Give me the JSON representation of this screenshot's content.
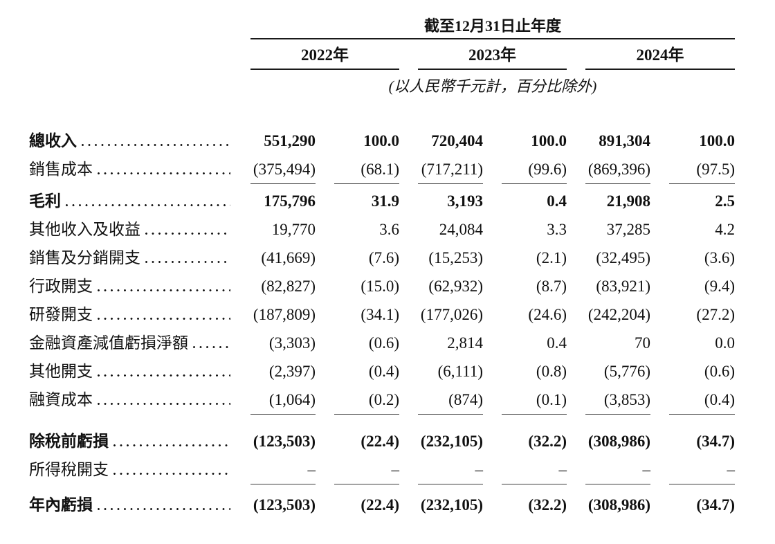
{
  "table": {
    "period_header": "截至12月31日止年度",
    "unit_note": "(以人民幣千元計，百分比除外)",
    "years": [
      "2022年",
      "2023年",
      "2024年"
    ],
    "column_kinds": [
      "amount",
      "percent",
      "amount",
      "percent",
      "amount",
      "percent"
    ],
    "rows": [
      {
        "label": "總收入",
        "bold": true,
        "ruled": false,
        "values": [
          "551,290",
          "100.0",
          "720,404",
          "100.0",
          "891,304",
          "100.0"
        ]
      },
      {
        "label": "銷售成本",
        "bold": false,
        "ruled": true,
        "values": [
          "(375,494)",
          "(68.1)",
          "(717,211)",
          "(99.6)",
          "(869,396)",
          "(97.5)"
        ]
      },
      {
        "label": "毛利",
        "bold": true,
        "ruled": false,
        "values": [
          "175,796",
          "31.9",
          "3,193",
          "0.4",
          "21,908",
          "2.5"
        ]
      },
      {
        "label": "其他收入及收益",
        "bold": false,
        "ruled": false,
        "values": [
          "19,770",
          "3.6",
          "24,084",
          "3.3",
          "37,285",
          "4.2"
        ]
      },
      {
        "label": "銷售及分銷開支",
        "bold": false,
        "ruled": false,
        "values": [
          "(41,669)",
          "(7.6)",
          "(15,253)",
          "(2.1)",
          "(32,495)",
          "(3.6)"
        ]
      },
      {
        "label": "行政開支",
        "bold": false,
        "ruled": false,
        "values": [
          "(82,827)",
          "(15.0)",
          "(62,932)",
          "(8.7)",
          "(83,921)",
          "(9.4)"
        ]
      },
      {
        "label": "研發開支",
        "bold": false,
        "ruled": false,
        "values": [
          "(187,809)",
          "(34.1)",
          "(177,026)",
          "(24.6)",
          "(242,204)",
          "(27.2)"
        ]
      },
      {
        "label": "金融資產減值虧損淨額",
        "bold": false,
        "ruled": false,
        "values": [
          "(3,303)",
          "(0.6)",
          "2,814",
          "0.4",
          "70",
          "0.0"
        ]
      },
      {
        "label": "其他開支",
        "bold": false,
        "ruled": false,
        "values": [
          "(2,397)",
          "(0.4)",
          "(6,111)",
          "(0.8)",
          "(5,776)",
          "(0.6)"
        ]
      },
      {
        "label": "融資成本",
        "bold": false,
        "ruled": true,
        "values": [
          "(1,064)",
          "(0.2)",
          "(874)",
          "(0.1)",
          "(3,853)",
          "(0.4)"
        ]
      },
      {
        "label": "除稅前虧損",
        "bold": true,
        "ruled": false,
        "values": [
          "(123,503)",
          "(22.4)",
          "(232,105)",
          "(32.2)",
          "(308,986)",
          "(34.7)"
        ]
      },
      {
        "label": "所得稅開支",
        "bold": false,
        "ruled": true,
        "values": [
          "–",
          "–",
          "–",
          "–",
          "–",
          "–"
        ]
      },
      {
        "label": "年內虧損",
        "bold": true,
        "ruled": false,
        "values": [
          "(123,503)",
          "(22.4)",
          "(232,105)",
          "(32.2)",
          "(308,986)",
          "(34.7)"
        ]
      }
    ]
  }
}
